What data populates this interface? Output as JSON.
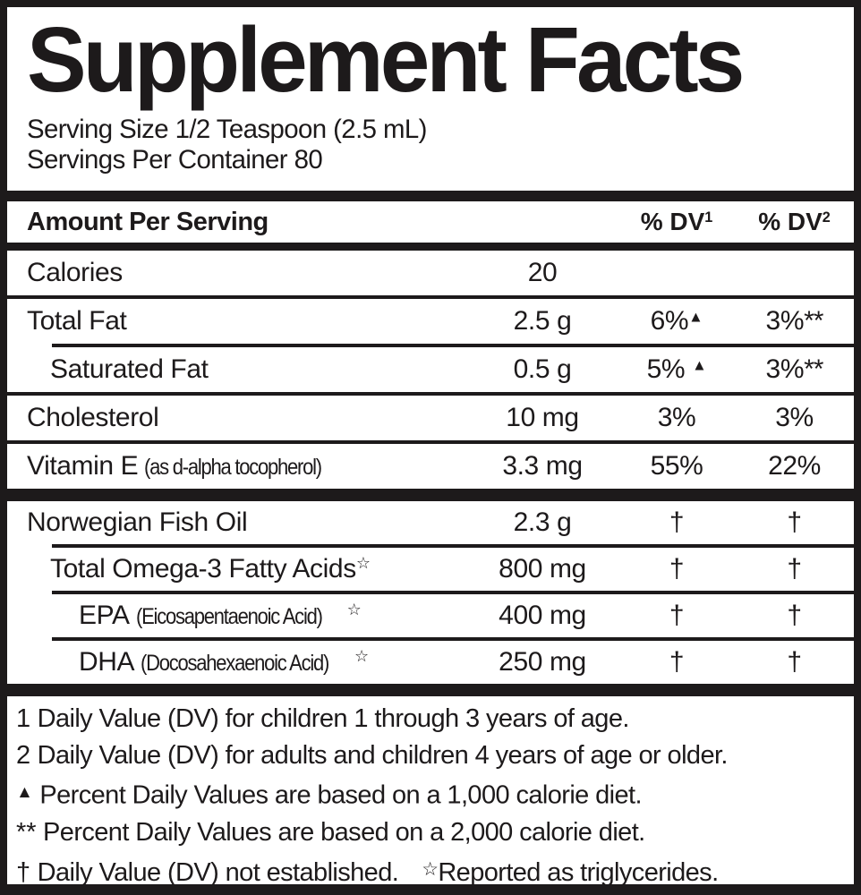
{
  "colors": {
    "ink": "#1d1a1b",
    "paper": "#ffffff"
  },
  "label": {
    "title": "Supplement Facts",
    "serving_size": "Serving Size 1/2 Teaspoon (2.5 mL)",
    "servings_per_container": "Servings Per Container 80",
    "header": {
      "amount_label": "Amount Per Serving",
      "dv1_label": "% DV",
      "dv1_sup": "1",
      "dv2_label": "% DV",
      "dv2_sup": "2"
    },
    "rows": [
      {
        "name": "Calories",
        "amount": "20",
        "dv1": "",
        "dv2": ""
      },
      {
        "name": "Total Fat",
        "amount": "2.5 g",
        "dv1": "6%",
        "dv1_mark": "▲",
        "dv2": "3%",
        "dv2_mark": "**"
      },
      {
        "name": "Saturated Fat",
        "amount": "0.5 g",
        "dv1": "5% ",
        "dv1_mark": "▲",
        "dv2": "3%",
        "dv2_mark": "**"
      },
      {
        "name": "Cholesterol",
        "amount": "10 mg",
        "dv1": "3%",
        "dv2": "3%"
      },
      {
        "name": "Vitamin E",
        "name_note": "(as d-alpha tocopherol)",
        "amount": "3.3 mg",
        "dv1": "55%",
        "dv2": "22%"
      },
      {
        "name": "Norwegian Fish Oil",
        "amount": "2.3 g",
        "dv1": "†",
        "dv2": "†"
      },
      {
        "name": "Total Omega-3 Fatty Acids",
        "name_mark": "☆",
        "amount": "800 mg",
        "dv1": "†",
        "dv2": "†"
      },
      {
        "name": "EPA",
        "name_note": "(Eicosapentaenoic Acid)",
        "name_mark": "☆",
        "amount": "400 mg",
        "dv1": "†",
        "dv2": "†"
      },
      {
        "name": "DHA",
        "name_note": "(Docosahexaenoic Acid)",
        "name_mark": "☆",
        "amount": "250 mg",
        "dv1": "†",
        "dv2": "†"
      }
    ],
    "footnotes": [
      {
        "marker": "1",
        "text": "Daily Value (DV) for children 1 through 3 years of age."
      },
      {
        "marker": "2",
        "text": "Daily Value (DV) for adults and children 4 years of age or older."
      },
      {
        "marker": "▲",
        "text": "Percent Daily Values are based on a 1,000 calorie diet."
      },
      {
        "marker": "**",
        "text": "Percent Daily Values are based on a 2,000 calorie diet."
      },
      {
        "marker": "†",
        "text": "Daily Value (DV) not established.",
        "marker2": "☆",
        "text2": "Reported as triglycerides."
      }
    ]
  }
}
